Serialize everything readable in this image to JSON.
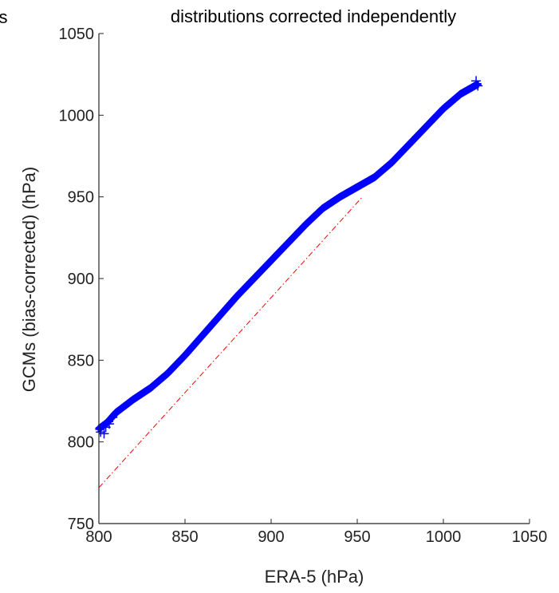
{
  "chart_data": {
    "type": "scatter",
    "title": "distributions corrected independently",
    "title_fragment_left": "s",
    "xlabel": "ERA-5 (hPa)",
    "ylabel": "GCMs (bias-corrected) (hPa)",
    "xlim": [
      800,
      1050
    ],
    "ylim": [
      750,
      1050
    ],
    "xticks": [
      800,
      850,
      900,
      950,
      1000,
      1050
    ],
    "yticks": [
      750,
      800,
      850,
      900,
      950,
      1000,
      1050
    ],
    "xtick_labels": [
      "800",
      "850",
      "900",
      "950",
      "1000",
      "1050"
    ],
    "ytick_labels": [
      "750",
      "800",
      "850",
      "900",
      "950",
      "1000",
      "1050"
    ],
    "grid": false,
    "series": [
      {
        "marker": "+",
        "color": "#0000ff",
        "trend": [
          [
            800,
            808
          ],
          [
            805,
            812
          ],
          [
            810,
            818
          ],
          [
            820,
            826
          ],
          [
            830,
            833
          ],
          [
            840,
            842
          ],
          [
            850,
            853
          ],
          [
            860,
            865
          ],
          [
            870,
            877
          ],
          [
            880,
            889
          ],
          [
            890,
            900
          ],
          [
            900,
            911
          ],
          [
            910,
            922
          ],
          [
            920,
            933
          ],
          [
            930,
            943
          ],
          [
            940,
            950
          ],
          [
            950,
            956
          ],
          [
            960,
            962
          ],
          [
            970,
            971
          ],
          [
            980,
            982
          ],
          [
            990,
            993
          ],
          [
            1000,
            1004
          ],
          [
            1010,
            1013
          ],
          [
            1020,
            1019
          ]
        ]
      },
      {
        "style": "dash-dot",
        "color": "#ff0000",
        "x": [
          800,
          953
        ],
        "y": [
          772,
          950
        ]
      }
    ]
  }
}
